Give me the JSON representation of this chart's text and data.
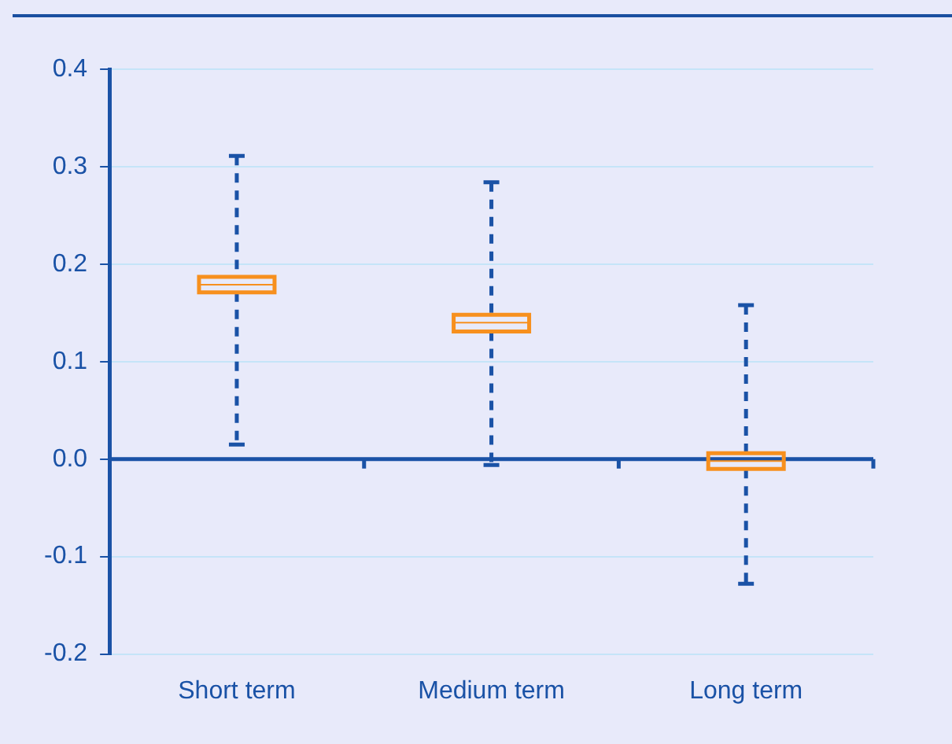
{
  "chart_data": {
    "type": "box",
    "categories": [
      "Short term",
      "Medium term",
      "Long term"
    ],
    "series": [
      {
        "color": "#f7901e",
        "boxes": [
          {
            "low": 0.015,
            "q1": 0.171,
            "median": 0.179,
            "q3": 0.187,
            "high": 0.311
          },
          {
            "low": -0.006,
            "q1": 0.131,
            "median": 0.14,
            "q3": 0.148,
            "high": 0.284
          },
          {
            "low": -0.128,
            "q1": -0.01,
            "median": -0.002,
            "q3": 0.006,
            "high": 0.158
          }
        ]
      }
    ],
    "ylim": [
      -0.2,
      0.4
    ],
    "yticks": [
      {
        "value": -0.2,
        "label": "-0.2"
      },
      {
        "value": -0.1,
        "label": "-0.1"
      },
      {
        "value": 0,
        "label": "0.0"
      },
      {
        "value": 0.1,
        "label": "0.1"
      },
      {
        "value": 0.2,
        "label": "0.2"
      },
      {
        "value": 0.3,
        "label": "0.3"
      },
      {
        "value": 0.4,
        "label": "0.4"
      }
    ],
    "ref_lines": [
      {
        "axis": "y",
        "value": 0,
        "color": "#1a52a6"
      }
    ],
    "grid": "y",
    "line_style": "dashed",
    "legend": false
  }
}
